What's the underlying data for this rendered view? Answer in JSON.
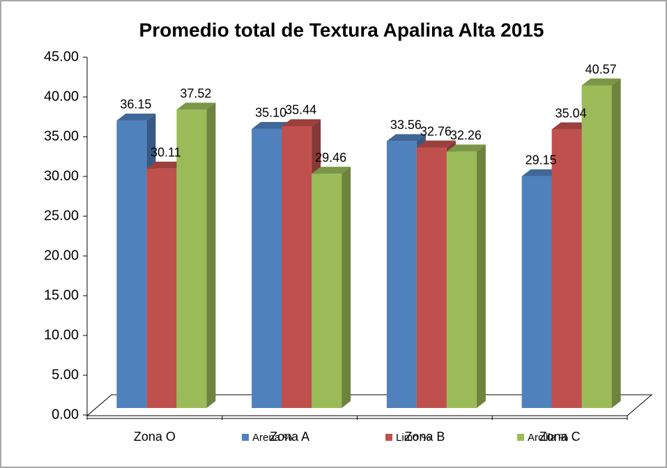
{
  "chart_data": {
    "type": "bar3d",
    "title": "Promedio total de Textura Apalina Alta 2015",
    "categories": [
      "Zona O",
      "Zona A",
      "Zona B",
      "Zona C"
    ],
    "series": [
      {
        "name": "Arena %",
        "color": "#4f81bd",
        "values": [
          36.15,
          35.1,
          33.56,
          29.15
        ],
        "value_labels": [
          "36.15",
          "35.10",
          "33.56",
          "29.15"
        ]
      },
      {
        "name": "Limo %",
        "color": "#c0504d",
        "values": [
          30.11,
          35.44,
          32.76,
          35.04
        ],
        "value_labels": [
          "30.11",
          "35.44",
          "32.76",
          "35.04"
        ]
      },
      {
        "name": "Arcilla %",
        "color": "#9bbb59",
        "values": [
          37.52,
          29.46,
          32.26,
          40.57
        ],
        "value_labels": [
          "37.52",
          "29.46",
          "32.26",
          "40.57"
        ]
      }
    ],
    "ylim": [
      0,
      45
    ],
    "yticks": [
      {
        "value": 0,
        "label": "0.00"
      },
      {
        "value": 5,
        "label": "5.00"
      },
      {
        "value": 10,
        "label": "10.00"
      },
      {
        "value": 15,
        "label": "15.00"
      },
      {
        "value": 20,
        "label": "20.00"
      },
      {
        "value": 25,
        "label": "25.00"
      },
      {
        "value": 30,
        "label": "30.00"
      },
      {
        "value": 35,
        "label": "35.00"
      },
      {
        "value": 40,
        "label": "40.00"
      },
      {
        "value": 45,
        "label": "45.00"
      }
    ],
    "legend": "bottom"
  }
}
